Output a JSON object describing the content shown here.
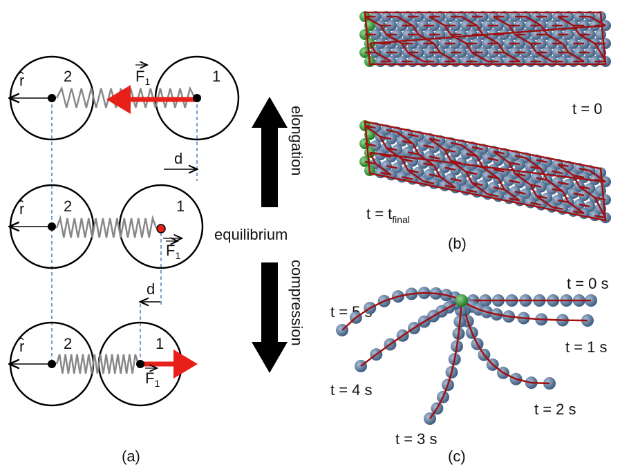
{
  "panel_a": {
    "label": "(a)",
    "rows": [
      {
        "particle_left": "2",
        "particle_right": "1",
        "unit_vector": "r̂",
        "force": "F",
        "force_sub": "1"
      },
      {
        "particle_left": "2",
        "particle_right": "1",
        "unit_vector": "r̂",
        "force": "F",
        "force_sub": "1"
      },
      {
        "particle_left": "2",
        "particle_right": "1",
        "unit_vector": "r̂",
        "force": "F",
        "force_sub": "1"
      }
    ],
    "distances": [
      "d",
      "d"
    ],
    "states": {
      "up": "elongation",
      "middle": "equilibrium",
      "down": "compression"
    }
  },
  "panel_b": {
    "label": "(b)",
    "initial": "t = 0",
    "final": "t = t",
    "final_sub": "final"
  },
  "panel_c": {
    "label": "(c)",
    "times": [
      "t = 0 s",
      "t = 1 s",
      "t = 2 s",
      "t = 3 s",
      "t = 4 s",
      "t = 5 s"
    ]
  }
}
